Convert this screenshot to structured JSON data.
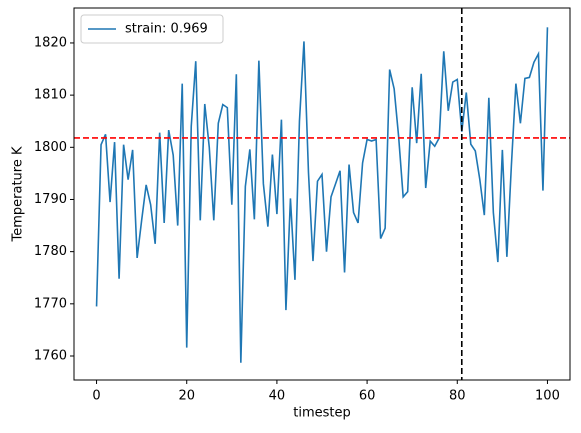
{
  "chart_data": {
    "type": "line",
    "xlabel": "timestep",
    "ylabel": "Temperature K",
    "x": [
      0,
      1,
      2,
      3,
      4,
      5,
      6,
      7,
      8,
      9,
      10,
      11,
      12,
      13,
      14,
      15,
      16,
      17,
      18,
      19,
      20,
      21,
      22,
      23,
      24,
      25,
      26,
      27,
      28,
      29,
      30,
      31,
      32,
      33,
      34,
      35,
      36,
      37,
      38,
      39,
      40,
      41,
      42,
      43,
      44,
      45,
      46,
      47,
      48,
      49,
      50,
      51,
      52,
      53,
      54,
      55,
      56,
      57,
      58,
      59,
      60,
      61,
      62,
      63,
      64,
      65,
      66,
      67,
      68,
      69,
      70,
      71,
      72,
      73,
      74,
      75,
      76,
      77,
      78,
      79,
      80,
      81,
      82,
      83,
      84,
      85,
      86,
      87,
      88,
      89,
      90,
      91,
      92,
      93,
      94,
      95,
      96,
      97,
      98,
      99,
      100
    ],
    "series": [
      {
        "name": "strain: 0.969",
        "color": "#1f77b4",
        "values": [
          1769.5,
          1800.5,
          1802.5,
          1789.5,
          1801,
          1774.8,
          1800.5,
          1793.8,
          1799.5,
          1778.8,
          1786,
          1792.8,
          1789,
          1781.5,
          1802.8,
          1785.5,
          1803.3,
          1798.5,
          1785,
          1812.2,
          1761.6,
          1804,
          1816.5,
          1786,
          1808.3,
          1800,
          1786,
          1804.6,
          1808.2,
          1807.6,
          1789,
          1814,
          1758.7,
          1792.5,
          1799.6,
          1786.2,
          1816.6,
          1793,
          1784.8,
          1798.6,
          1787.2,
          1805.3,
          1768.8,
          1790.2,
          1774.6,
          1805,
          1820.3,
          1795.2,
          1778.2,
          1793.5,
          1794.8,
          1780,
          1790.5,
          1793,
          1795.5,
          1776,
          1796.7,
          1787.5,
          1785.5,
          1797,
          1801.5,
          1801.2,
          1801.5,
          1782.5,
          1784.5,
          1814.9,
          1811.2,
          1802,
          1790.5,
          1791.5,
          1811.5,
          1800.8,
          1814.1,
          1792.2,
          1801.2,
          1800.2,
          1801.8,
          1818.4,
          1807,
          1812.5,
          1813,
          1803,
          1810.5,
          1800.6,
          1799.3,
          1793.8,
          1787,
          1809.5,
          1787.5,
          1778,
          1799.5,
          1779,
          1796.5,
          1812.2,
          1804.6,
          1813.2,
          1813.4,
          1816.3,
          1817.9,
          1791.7,
          1823
        ]
      }
    ],
    "xlim": [
      -5,
      105
    ],
    "ylim": [
      1755.4,
      1826.7
    ],
    "xticks": [
      0,
      20,
      40,
      60,
      80,
      100
    ],
    "yticks": [
      1760,
      1770,
      1780,
      1790,
      1800,
      1810,
      1820
    ],
    "hline": {
      "value": 1801.8,
      "color": "#ff0000"
    },
    "vline": {
      "value": 81,
      "color": "#000000"
    },
    "legend": "upper left",
    "grid": false
  }
}
